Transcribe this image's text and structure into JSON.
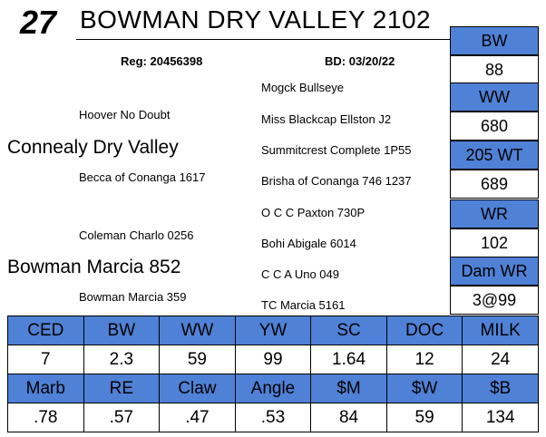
{
  "lot_number": "27",
  "title": "BOWMAN DRY VALLEY 2102",
  "registration": "Reg: 20456398",
  "birth_date": "BD: 03/20/22",
  "pedigree": {
    "sire": "Connealy Dry Valley",
    "sire_sire": "Hoover No Doubt",
    "sire_dam": "Becca of Conanga 1617",
    "sire_sire_sire": "Mogck Bullseye",
    "sire_sire_dam": "Miss Blackcap Ellston J2",
    "sire_dam_sire": "Summitcrest Complete 1P55",
    "sire_dam_dam": "Brisha of Conanga 746 1237",
    "dam": "Bowman Marcia 852",
    "dam_sire": "Coleman Charlo 0256",
    "dam_dam": "Bowman Marcia 359",
    "dam_sire_sire": "O C C Paxton 730P",
    "dam_sire_dam": "Bohi Abigale 6014",
    "dam_dam_sire": "C C A Uno 049",
    "dam_dam_dam": "TC Marcia 5161"
  },
  "stats": [
    {
      "label": "BW",
      "value": "88"
    },
    {
      "label": "WW",
      "value": "680"
    },
    {
      "label": "205 WT",
      "value": "689"
    },
    {
      "label": "WR",
      "value": "102"
    },
    {
      "label": "Dam WR",
      "value": "3@99"
    }
  ],
  "epd_rows": [
    {
      "headers": [
        "CED",
        "BW",
        "WW",
        "YW",
        "SC",
        "DOC",
        "MILK"
      ],
      "values": [
        "7",
        "2.3",
        "59",
        "99",
        "1.64",
        "12",
        "24"
      ]
    },
    {
      "headers": [
        "Marb",
        "RE",
        "Claw",
        "Angle",
        "$M",
        "$W",
        "$B"
      ],
      "values": [
        ".78",
        ".57",
        ".47",
        ".53",
        "84",
        "59",
        "134"
      ]
    }
  ],
  "colors": {
    "header_fill": "#4f81d6"
  }
}
